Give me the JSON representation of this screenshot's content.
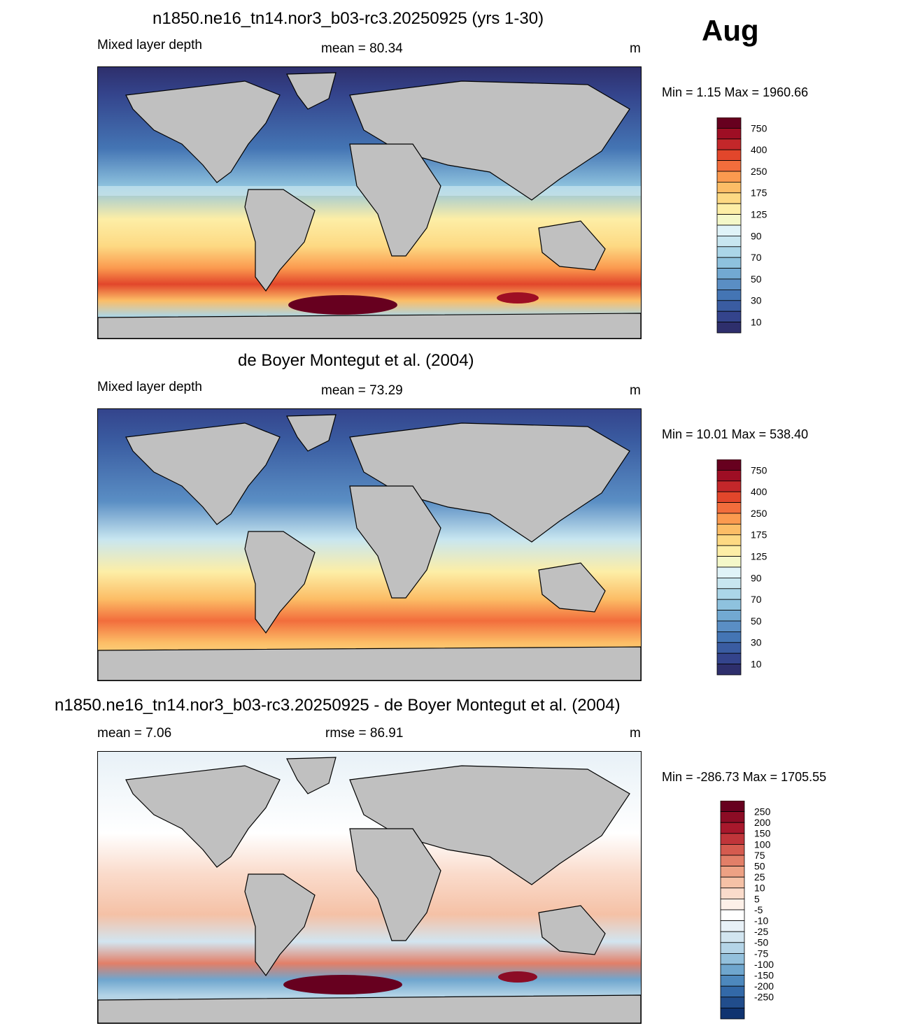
{
  "month": "Aug",
  "panels": [
    {
      "title": "n1850.ne16_tn14.nor3_b03-rc3.20250925 (yrs 1-30)",
      "left_label": "Mixed layer depth",
      "center_label": "mean =  80.34",
      "right_label": "m",
      "minmax": "Min =   1.15 Max = 1960.66"
    },
    {
      "title": "de Boyer Montegut et al. (2004)",
      "left_label": "Mixed layer depth",
      "center_label": "mean =  73.29",
      "right_label": "m",
      "minmax": "Min =  10.01 Max = 538.40"
    },
    {
      "title": "n1850.ne16_tn14.nor3_b03-rc3.20250925 - de Boyer Montegut et al. (2004)",
      "left_label": "mean =   7.06",
      "center_label": "rmse =  86.91",
      "right_label": "m",
      "minmax": "Min = -286.73 Max = 1705.55"
    }
  ],
  "chart_data": [
    {
      "type": "heatmap",
      "variable": "Mixed layer depth",
      "units": "m",
      "mean": 80.34,
      "min": 1.15,
      "max": 1960.66,
      "colorbar_labels": [
        "750",
        "400",
        "250",
        "175",
        "125",
        "90",
        "70",
        "50",
        "30",
        "10"
      ],
      "colorbar_colors": [
        "#67001f",
        "#9e0e24",
        "#c3272a",
        "#e2462b",
        "#f26d3c",
        "#fb9a4f",
        "#fcbd66",
        "#fdd983",
        "#fdeea6",
        "#f4f8c9",
        "#e0f3f8",
        "#c8e6f0",
        "#abd6e8",
        "#8ec2de",
        "#72a9d2",
        "#5a8ec4",
        "#4475b4",
        "#3a5ca1",
        "#34448c",
        "#2e2f6c"
      ]
    },
    {
      "type": "heatmap",
      "variable": "Mixed layer depth",
      "units": "m",
      "mean": 73.29,
      "min": 10.01,
      "max": 538.4,
      "colorbar_labels": [
        "750",
        "400",
        "250",
        "175",
        "125",
        "90",
        "70",
        "50",
        "30",
        "10"
      ],
      "colorbar_colors": [
        "#67001f",
        "#9e0e24",
        "#c3272a",
        "#e2462b",
        "#f26d3c",
        "#fb9a4f",
        "#fcbd66",
        "#fdd983",
        "#fdeea6",
        "#f4f8c9",
        "#e0f3f8",
        "#c8e6f0",
        "#abd6e8",
        "#8ec2de",
        "#72a9d2",
        "#5a8ec4",
        "#4475b4",
        "#3a5ca1",
        "#34448c",
        "#2e2f6c"
      ]
    },
    {
      "type": "heatmap",
      "variable": "difference",
      "units": "m",
      "mean": 7.06,
      "rmse": 86.91,
      "min": -286.73,
      "max": 1705.55,
      "colorbar_labels": [
        "250",
        "200",
        "150",
        "100",
        "75",
        "50",
        "25",
        "10",
        "5",
        "-5",
        "-10",
        "-25",
        "-50",
        "-75",
        "-100",
        "-150",
        "-200",
        "-250"
      ],
      "colorbar_colors": [
        "#67001f",
        "#8c0c25",
        "#a8182c",
        "#c0353a",
        "#d55b4f",
        "#e27f68",
        "#eda184",
        "#f5c1a6",
        "#fadbcb",
        "#fdf0e8",
        "#ffffff",
        "#e8f1f7",
        "#d2e5f0",
        "#b4d4e7",
        "#93c0dc",
        "#6fa6ce",
        "#4d88bd",
        "#3369a8",
        "#214d8c",
        "#0f3370"
      ]
    }
  ]
}
